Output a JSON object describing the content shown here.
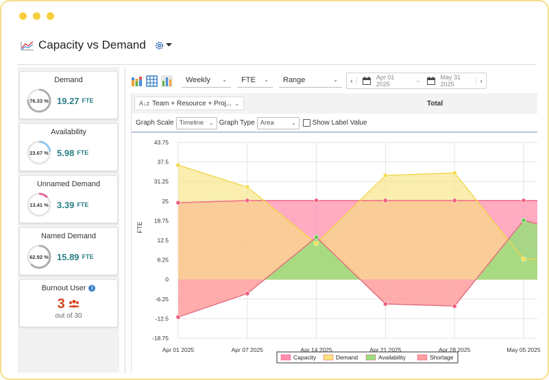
{
  "window": {
    "title": "Capacity vs Demand"
  },
  "sidebar": {
    "cards": [
      {
        "title": "Demand",
        "percent_label": "76.33 %",
        "percent": 76.33,
        "value": "19.27",
        "unit": "FTE",
        "ring_color": "#aeaeae"
      },
      {
        "title": "Availability",
        "percent_label": "23.67 %",
        "percent": 23.67,
        "value": "5.98",
        "unit": "FTE",
        "ring_color": "#8fc9ec"
      },
      {
        "title": "Unnamed Demand",
        "percent_label": "13.41 %",
        "percent": 13.41,
        "value": "3.39",
        "unit": "FTE",
        "ring_color": "#e0699e"
      },
      {
        "title": "Named Demand",
        "percent_label": "62.92 %",
        "percent": 62.92,
        "value": "15.89",
        "unit": "FTE",
        "ring_color": "#aeaeae"
      }
    ],
    "burnout": {
      "title": "Burnout User",
      "count": "3",
      "sub": "out of 30"
    }
  },
  "toolbar": {
    "period": "Weekly",
    "unit": "FTE",
    "range": "Range",
    "date_from": "Apr 01 2025",
    "date_sep": "–",
    "date_to": "May 31 2025"
  },
  "grouping": {
    "label": "Team + Resource + Proj...",
    "total_label": "Total"
  },
  "controls": {
    "graph_scale_label": "Graph Scale",
    "graph_scale_value": "Timeline",
    "graph_type_label": "Graph Type",
    "graph_type_value": "Area",
    "show_label_value": "Show Label Value"
  },
  "chart_data": {
    "type": "area",
    "ylabel": "FTE",
    "yticks": [
      "43.75",
      "37.5",
      "31.25",
      "25",
      "18.75",
      "12.5",
      "6.25",
      "0",
      "-6.25",
      "-12.5",
      "-18.75"
    ],
    "ylim": [
      -18.75,
      43.75
    ],
    "x": [
      "Apr 01 2025",
      "Apr 07 2025",
      "Apr 14 2025",
      "Apr 21 2025",
      "Apr 28 2025",
      "May 05 2025"
    ],
    "series": [
      {
        "name": "Capacity",
        "values": [
          24.5,
          25.2,
          25.2,
          25.2,
          25.2,
          25.2
        ],
        "color": "#ff8fad"
      },
      {
        "name": "Demand",
        "values": [
          36.5,
          29.5,
          11.5,
          33.2,
          34.0,
          6.5
        ],
        "color": "#f7e27a"
      },
      {
        "name": "Availability",
        "values": [
          -12.0,
          -4.5,
          13.5,
          -7.8,
          -8.5,
          18.9
        ],
        "color": "#99dd7d"
      },
      {
        "name": "Shortage",
        "values": [
          -12.0,
          -4.5,
          13.5,
          -7.8,
          -8.5,
          18.9
        ],
        "color": "#ff9d9d"
      }
    ],
    "legend_position": "bottom"
  }
}
